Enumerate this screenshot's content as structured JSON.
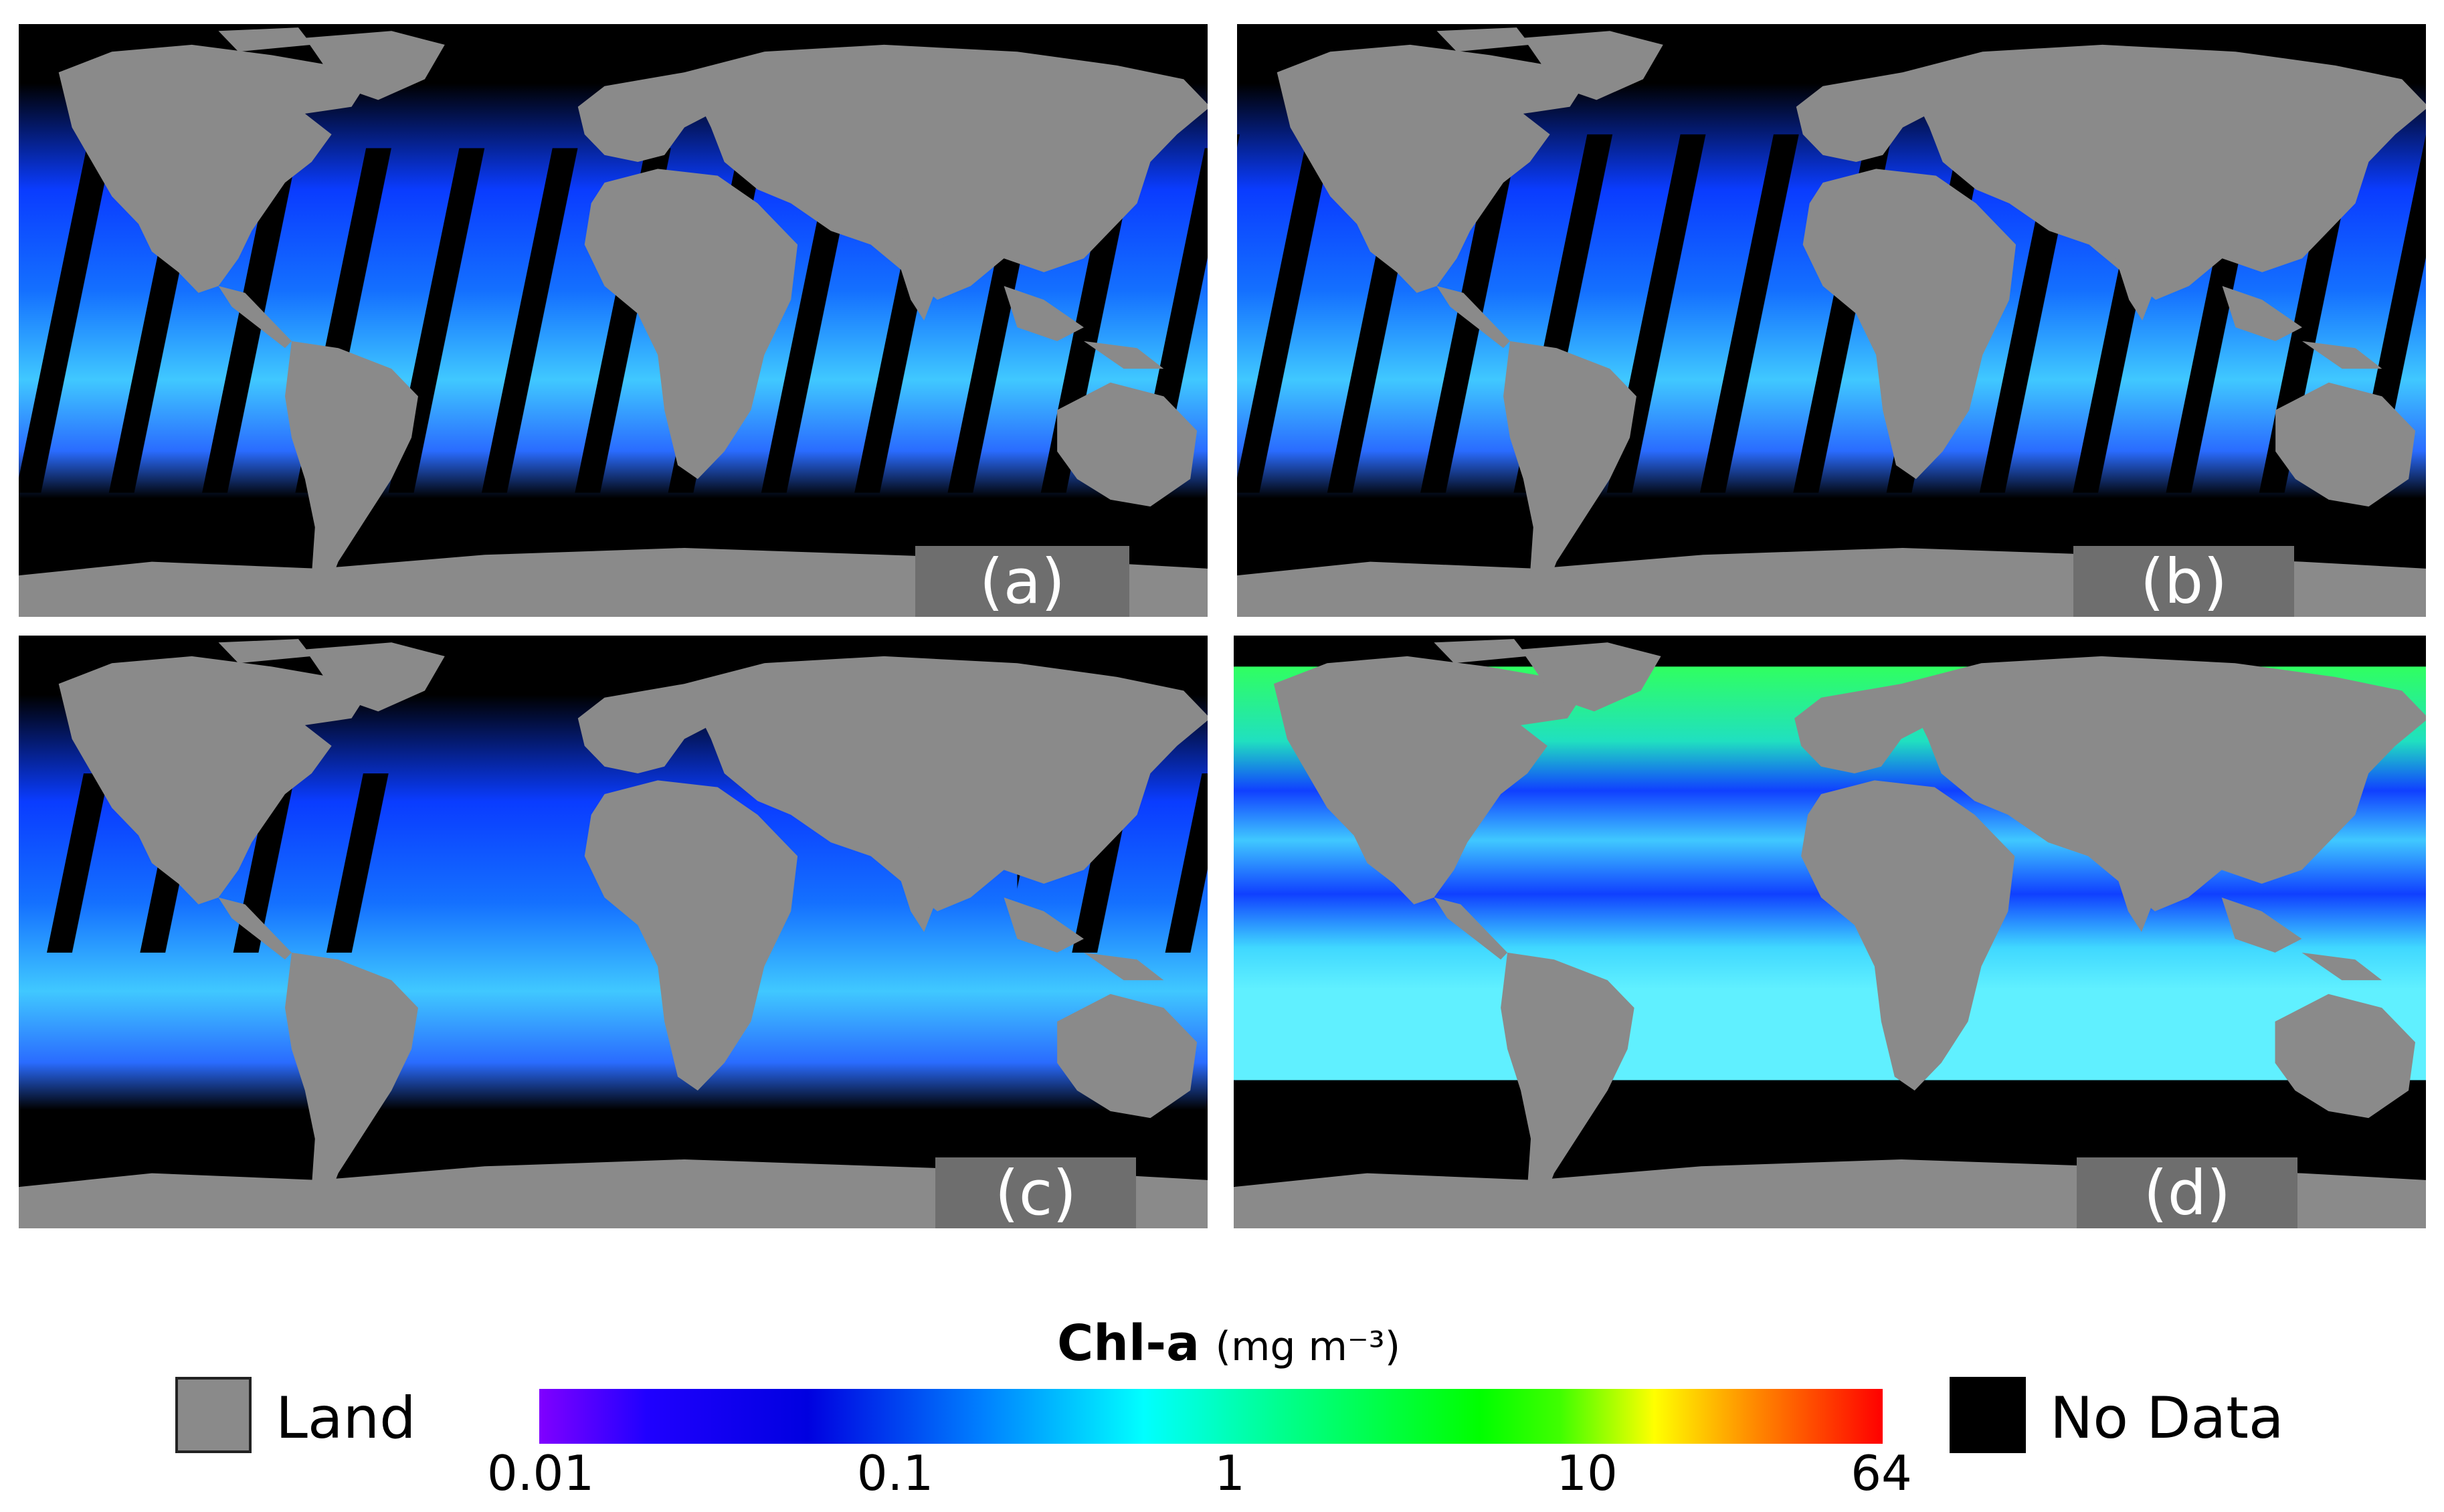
{
  "panels": [
    {
      "label": "(a)"
    },
    {
      "label": "(b)"
    },
    {
      "label": "(c)"
    },
    {
      "label": "(d)"
    }
  ],
  "legend": {
    "land_label": "Land",
    "nodata_label": "No Data",
    "title": "Chl-a",
    "units": "(mg m⁻³)",
    "ticks": [
      "0.01",
      "0.1",
      "1",
      "10",
      "64"
    ],
    "scale": "log",
    "range": [
      0.01,
      64
    ]
  },
  "colors": {
    "land": "#8a8a8a",
    "no_data": "#000000",
    "colormap": [
      "#7f00ff",
      "#0000ff",
      "#00a0ff",
      "#00ffff",
      "#00ff80",
      "#00ff00",
      "#ffff00",
      "#ff8000",
      "#ff0000"
    ]
  }
}
